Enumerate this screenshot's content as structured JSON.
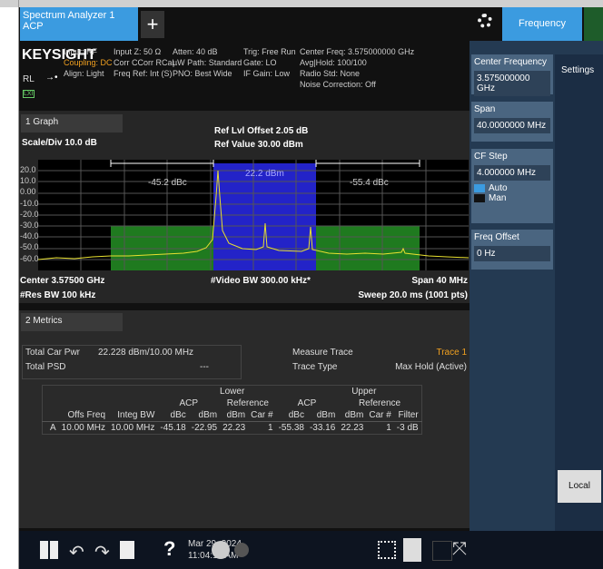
{
  "tabs": {
    "app": "Spectrum Analyzer 1",
    "mode": "ACP",
    "add": "+",
    "menu": "Frequency"
  },
  "status": {
    "brand": "KEYSIGHT",
    "rl": "RL",
    "lxi": "LXI",
    "col1": [
      "Input: RF",
      "Coupling: DC",
      "Align: Light"
    ],
    "col2": [
      "Input Z: 50 Ω",
      "Corr CCorr RCal",
      "Freq Ref: Int (S)"
    ],
    "col3": [
      "Atten: 40 dB",
      "µW Path: Standard",
      "PNO: Best Wide"
    ],
    "col4": [
      "Trig: Free Run",
      "Gate: LO",
      "IF Gain: Low"
    ],
    "col5": [
      "Center Freq: 3.575000000 GHz",
      "Avg|Hold: 100/100",
      "Radio Std: None",
      "Noise Correction: Off"
    ]
  },
  "graph": {
    "pane": "1 Graph",
    "scale": "Scale/Div 10.0 dB",
    "offset": "Ref Lvl Offset 2.05 dB",
    "ref": "Ref Value 30.00 dBm",
    "ylabels": [
      "20.0",
      "10.0",
      "0.00",
      "-10.0",
      "-20.0",
      "-30.0",
      "-40.0",
      "-50.0",
      "-60.0"
    ],
    "lower_label": "-45.2 dBc",
    "main_label": "22.2 dBm",
    "upper_label": "-55.4 dBc",
    "center": "Center 3.57500 GHz",
    "vbw": "#Video BW 300.00 kHz*",
    "span": "Span 40 MHz",
    "rbw": "#Res BW 100 kHz",
    "sweep": "Sweep 20.0 ms (1001 pts)"
  },
  "metrics": {
    "pane": "2 Metrics",
    "total_car_pwr_label": "Total Car Pwr",
    "total_car_pwr": "22.228 dBm/10.00 MHz",
    "total_psd_label": "Total PSD",
    "total_psd": "---",
    "measure_trace_label": "Measure Trace",
    "measure_trace": "Trace 1",
    "trace_type_label": "Trace Type",
    "trace_type": "Max Hold (Active)"
  },
  "table": {
    "lower": "Lower",
    "upper": "Upper",
    "groups": [
      "ACP",
      "Reference",
      "ACP",
      "Reference"
    ],
    "columns": [
      "Offs Freq",
      "Integ BW",
      "dBc",
      "dBm",
      "dBm",
      "Car #",
      "dBc",
      "dBm",
      "dBm",
      "Car #",
      "Filter"
    ],
    "rows": [
      [
        "A",
        "10.00 MHz",
        "10.00 MHz",
        "-45.18",
        "-22.95",
        "22.23",
        "1",
        "-55.38",
        "-33.16",
        "22.23",
        "1",
        "-3 dB"
      ]
    ]
  },
  "panel": {
    "settings": "Settings",
    "local": "Local",
    "center_label": "Center Frequency",
    "center_value": "3.575000000 GHz",
    "span_label": "Span",
    "span_value": "40.0000000 MHz",
    "cfstep_label": "CF Step",
    "cfstep_value": "4.000000 MHz",
    "auto": "Auto",
    "man": "Man",
    "offset_label": "Freq Offset",
    "offset_value": "0 Hz"
  },
  "taskbar": {
    "help": "?",
    "date": "Mar 29, 2024",
    "time": "11:04:18 AM"
  }
}
